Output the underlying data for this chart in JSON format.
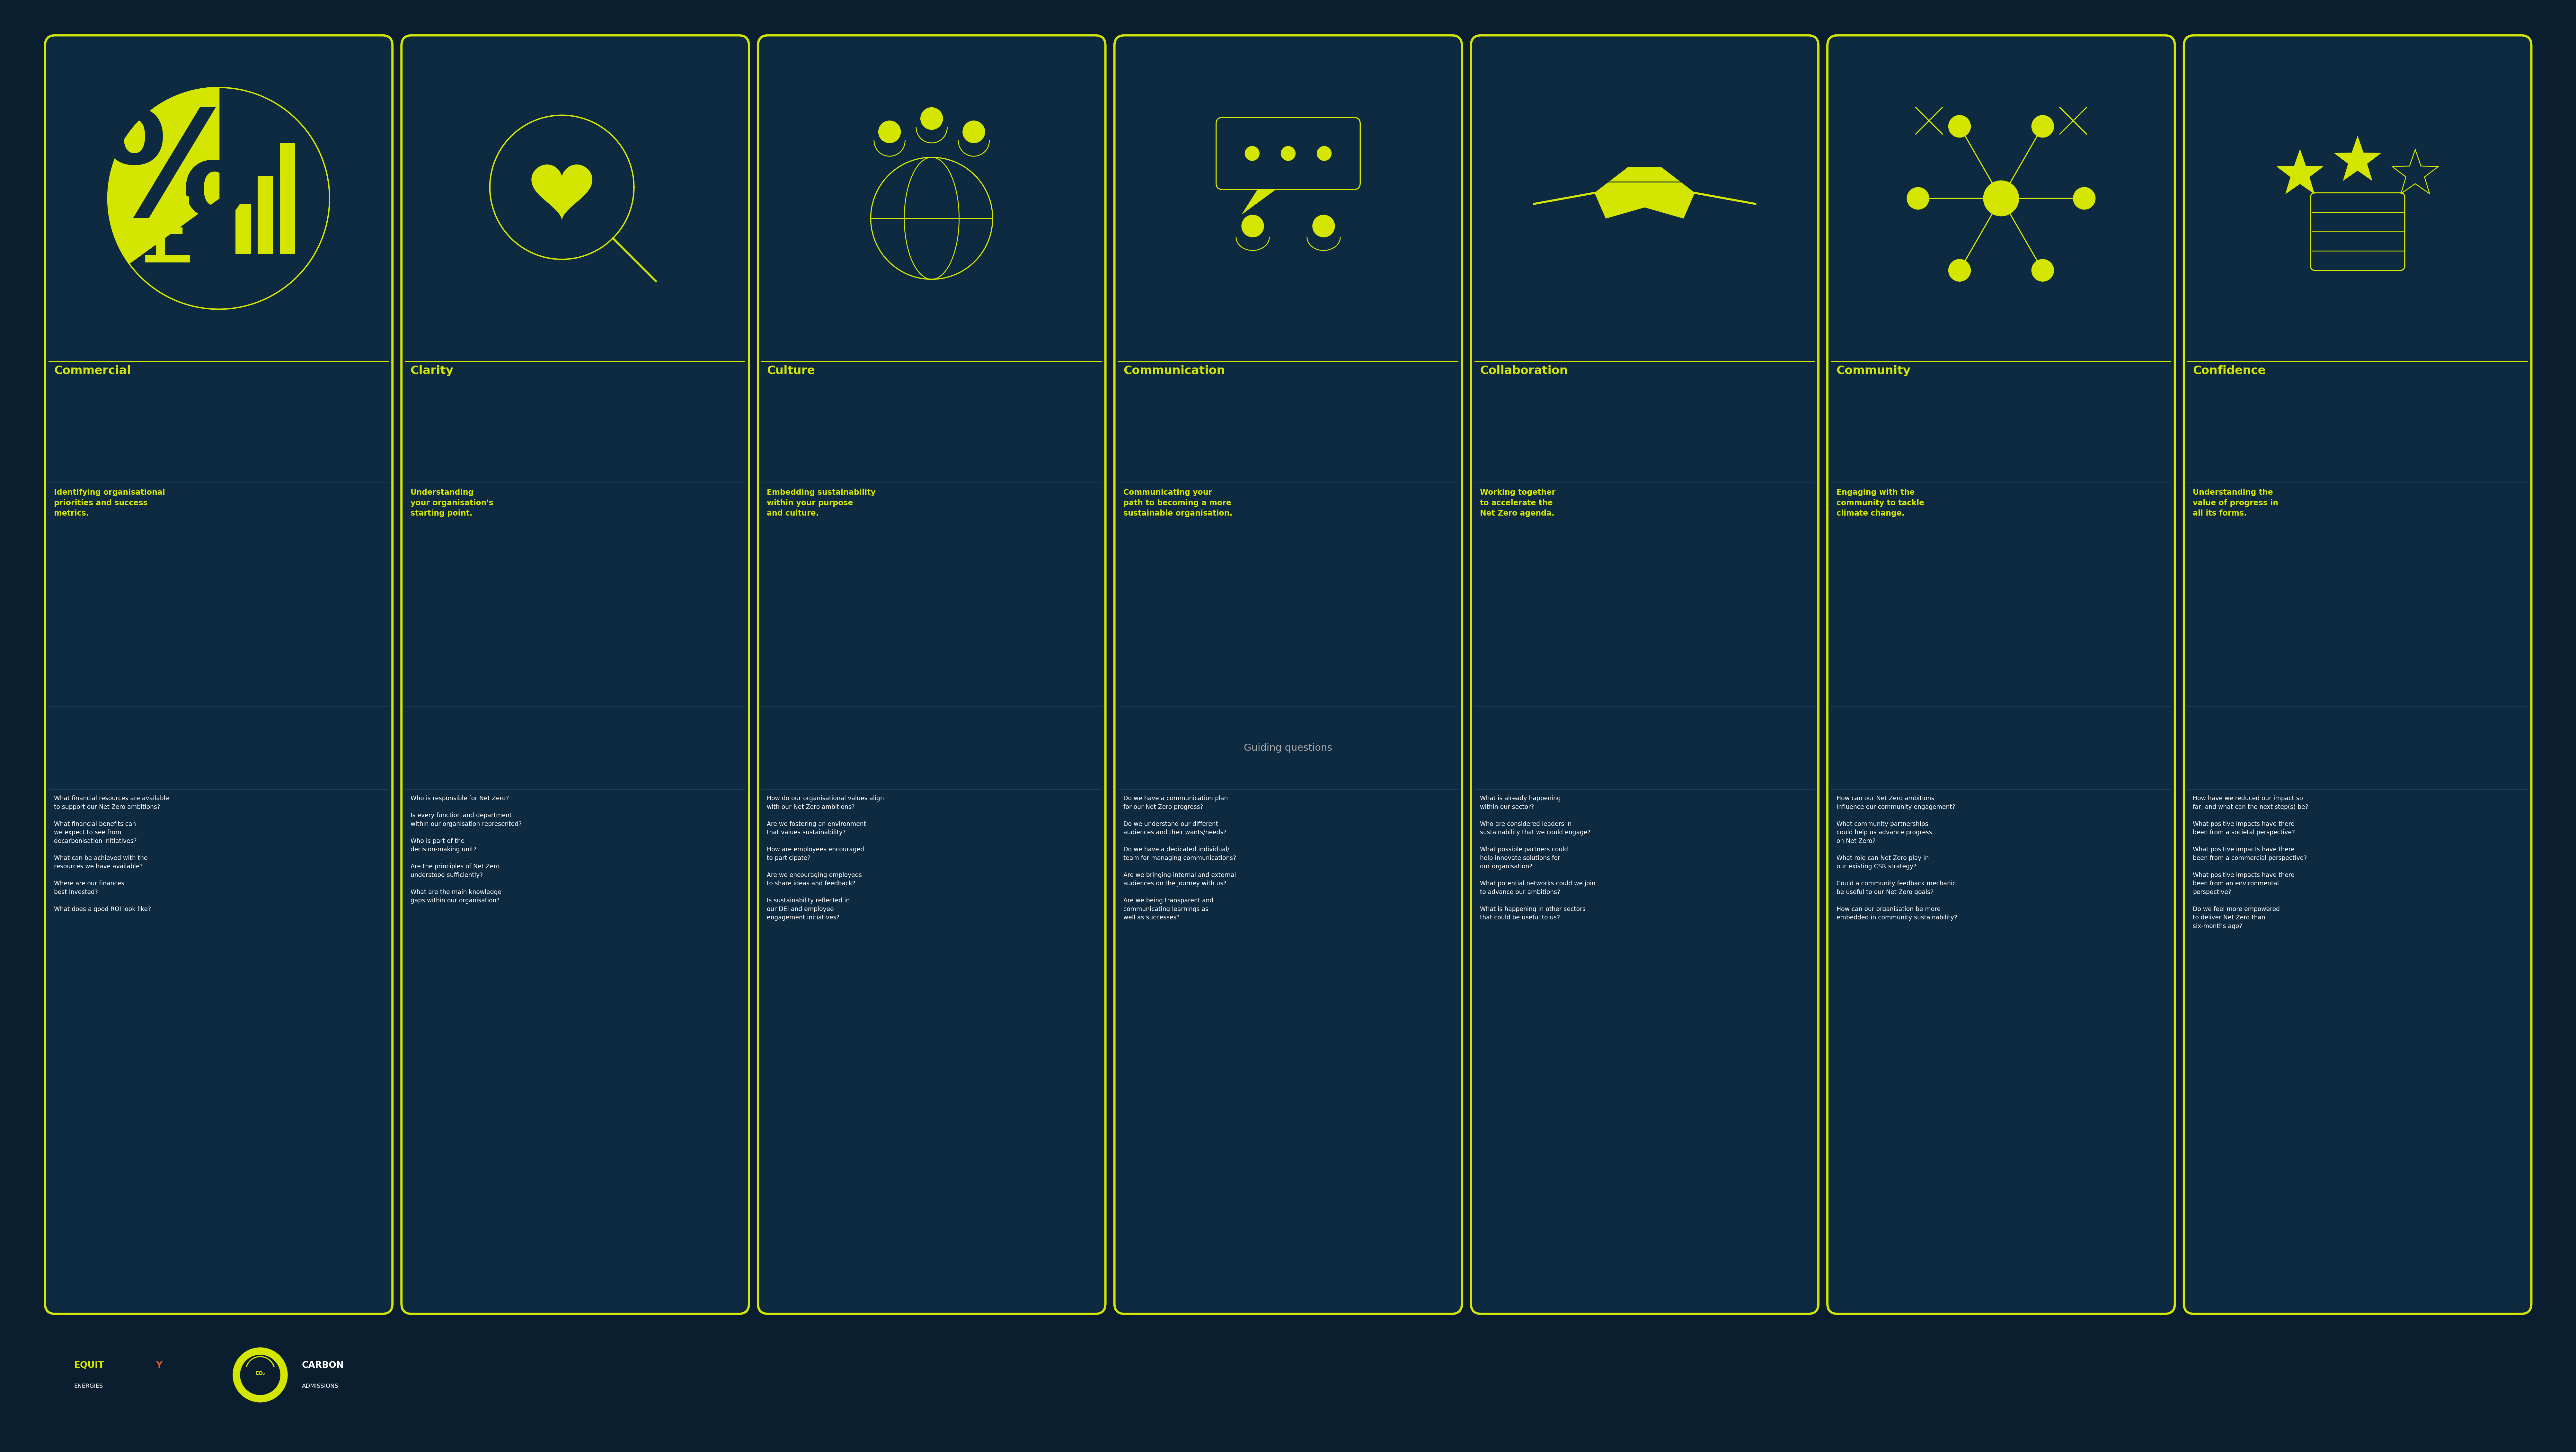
{
  "background_color": "#0a1e30",
  "card_bg_color": "#0d2a40",
  "card_border_color": "#d4e600",
  "title_color": "#d4e600",
  "subtitle_color": "#d4e600",
  "body_color": "#ffffff",
  "guiding_header_color": "#aaaaaa",
  "section_line_color": "#1e4060",
  "guiding_bar_color": "#0f2840",
  "cards": [
    {
      "title": "Commercial",
      "subtitle": "Identifying organisational\npriorities and success\nmetrics.",
      "questions": [
        "What financial resources are available\nto support our Net Zero ambitions?\n\nWhat financial benefits can\nwe expect to see from\ndecarbonisation initiatives?\n\nWhat can be achieved with the\nresources we have available?\n\nWhere are our finances\nbest invested?\n\nWhat does a good ROI look like?"
      ],
      "icon": "commercial"
    },
    {
      "title": "Clarity",
      "subtitle": "Understanding\nyour organisation's\nstarting point.",
      "questions": [
        "Who is responsible for Net Zero?\n\nIs every function and department\nwithin our organisation represented?\n\nWho is part of the\ndecision-making unit?\n\nAre the principles of Net Zero\nunderstood sufficiently?\n\nWhat are the main knowledge\ngaps within our organisation?"
      ],
      "icon": "clarity"
    },
    {
      "title": "Culture",
      "subtitle": "Embedding sustainability\nwithin your purpose\nand culture.",
      "questions": [
        "How do our organisational values align\nwith our Net Zero ambitions?\n\nAre we fostering an environment\nthat values sustainability?\n\nHow are employees encouraged\nto participate?\n\nAre we encouraging employees\nto share ideas and feedback?\n\nIs sustainability reflected in\nour DEI and employee\nengagement initiatives?"
      ],
      "icon": "culture"
    },
    {
      "title": "Communication",
      "subtitle": "Communicating your\npath to becoming a more\nsustainable organisation.",
      "questions": [
        "Do we have a communication plan\nfor our Net Zero progress?\n\nDo we understand our different\naudiences and their wants/needs?\n\nDo we have a dedicated individual/\nteam for managing communications?\n\nAre we bringing internal and external\naudiences on the journey with us?\n\nAre we being transparent and\ncommunicating learnings as\nwell as successes?"
      ],
      "icon": "communication"
    },
    {
      "title": "Collaboration",
      "subtitle": "Working together\nto accelerate the\nNet Zero agenda.",
      "questions": [
        "What is already happening\nwithin our sector?\n\nWho are considered leaders in\nsustainability that we could engage?\n\nWhat possible partners could\nhelp innovate solutions for\nour organisation?\n\nWhat potential networks could we join\nto advance our ambitions?\n\nWhat is happening in other sectors\nthat could be useful to us?"
      ],
      "icon": "collaboration"
    },
    {
      "title": "Community",
      "subtitle": "Engaging with the\ncommunity to tackle\nclimate change.",
      "questions": [
        "How can our Net Zero ambitions\ninfluence our community engagement?\n\nWhat community partnerships\ncould help us advance progress\non Net Zero?\n\nWhat role can Net Zero play in\nour existing CSR strategy?\n\nCould a community feedback mechanic\nbe useful to our Net Zero goals?\n\nHow can our organisation be more\nembedded in community sustainability?"
      ],
      "icon": "community"
    },
    {
      "title": "Confidence",
      "subtitle": "Understanding the\nvalue of progress in\nall its forms.",
      "questions": [
        "How have we reduced our impact so\nfar, and what can the next step(s) be?\n\nWhat positive impacts have there\nbeen from a societal perspective?\n\nWhat positive impacts have there\nbeen from a commercial perspective?\n\nWhat positive impacts have there\nbeen from an environmental\nperspective?\n\nDo we feel more empowered\nto deliver Net Zero than\nsix-months ago?"
      ],
      "icon": "confidence"
    }
  ],
  "guiding_text": "Guiding questions"
}
